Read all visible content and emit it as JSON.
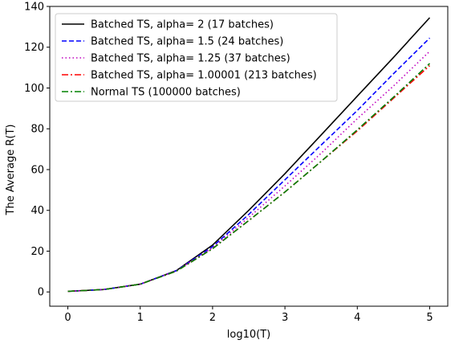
{
  "chart_data": {
    "type": "line",
    "xlabel": "log10(T)",
    "ylabel": "The Average R(T)",
    "xlim": [
      -0.25,
      5.25
    ],
    "ylim": [
      -7,
      140
    ],
    "xticks": [
      0,
      1,
      2,
      3,
      4,
      5
    ],
    "yticks": [
      0,
      20,
      40,
      60,
      80,
      100,
      120,
      140
    ],
    "legend_position": "top-left",
    "grid": false,
    "series": [
      {
        "name": "Batched TS, alpha= 2 (17 batches)",
        "color": "#000000",
        "dash": "solid",
        "x": [
          0,
          0.5,
          1,
          1.5,
          2,
          2.5,
          3,
          3.5,
          4,
          4.5,
          5
        ],
        "y": [
          0.3,
          1.2,
          3.8,
          10.5,
          23,
          40,
          58,
          77,
          96,
          115,
          134.5
        ]
      },
      {
        "name": "Batched TS, alpha= 1.5 (24 batches)",
        "color": "#0000ff",
        "dash": "dashed",
        "x": [
          0,
          0.5,
          1,
          1.5,
          2,
          2.5,
          3,
          3.5,
          4,
          4.5,
          5
        ],
        "y": [
          0.3,
          1.2,
          3.8,
          10.4,
          22.2,
          38,
          55,
          72,
          89,
          107,
          124.5
        ]
      },
      {
        "name": "Batched TS, alpha= 1.25 (37 batches)",
        "color": "#bf00bf",
        "dash": "dotted",
        "x": [
          0,
          0.5,
          1,
          1.5,
          2,
          2.5,
          3,
          3.5,
          4,
          4.5,
          5
        ],
        "y": [
          0.3,
          1.2,
          3.8,
          10.3,
          21.7,
          36.5,
          52,
          68,
          85,
          101,
          118
        ]
      },
      {
        "name": "Batched TS, alpha= 1.00001 (213 batches)",
        "color": "#ff0000",
        "dash": "dashdot",
        "x": [
          0,
          0.5,
          1,
          1.5,
          2,
          2.5,
          3,
          3.5,
          4,
          4.5,
          5
        ],
        "y": [
          0.3,
          1.2,
          3.8,
          10.2,
          21.2,
          35,
          49,
          64,
          79,
          95,
          111
        ]
      },
      {
        "name": "Normal TS (100000 batches)",
        "color": "#008000",
        "dash": "dashdot",
        "x": [
          0,
          0.5,
          1,
          1.5,
          2,
          2.5,
          3,
          3.5,
          4,
          4.5,
          5
        ],
        "y": [
          0.3,
          1.2,
          3.8,
          10.2,
          21.2,
          35,
          49,
          64,
          79.5,
          95.5,
          112
        ]
      }
    ]
  }
}
